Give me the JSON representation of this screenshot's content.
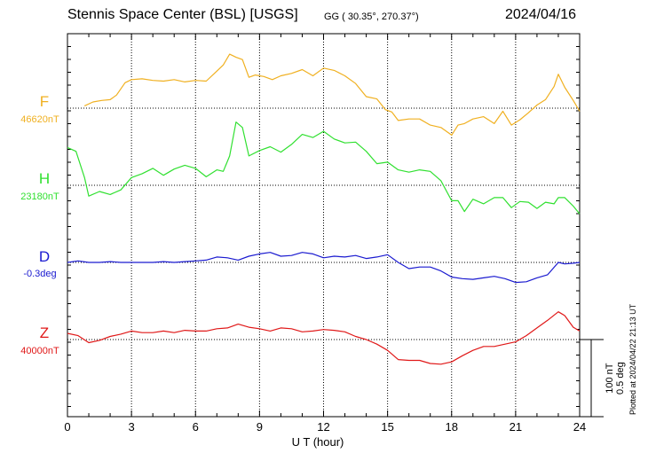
{
  "header": {
    "station": "Stennis Space Center (BSL)  [USGS]",
    "coords": "GG ( 30.35°, 270.37°)",
    "date": "2024/04/16"
  },
  "footer": {
    "plotted": "Plotted at 2024/04/22 21:13 UT"
  },
  "scale": {
    "nt": "100 nT",
    "deg": "0.5 deg"
  },
  "chart_data": {
    "type": "line",
    "xlabel": "U T (hour)",
    "xlim": [
      0,
      24
    ],
    "xticks": [
      "0",
      "3",
      "6",
      "9",
      "12",
      "15",
      "18",
      "21",
      "24"
    ],
    "grid": true,
    "series": [
      {
        "name": "F",
        "baseline": "46620nT",
        "color": "#f0b020",
        "x": [
          0.8,
          1.2,
          1.6,
          2.0,
          2.3,
          2.7,
          3.0,
          3.5,
          4.0,
          4.5,
          5.0,
          5.5,
          6.0,
          6.5,
          7.0,
          7.3,
          7.6,
          7.9,
          8.2,
          8.5,
          8.8,
          9.2,
          9.6,
          10.0,
          10.5,
          11.0,
          11.5,
          12.0,
          12.5,
          13.0,
          13.5,
          14.0,
          14.5,
          14.9,
          15.2,
          15.5,
          16.0,
          16.5,
          17.0,
          17.5,
          18.0,
          18.3,
          18.6,
          19.0,
          19.5,
          20.0,
          20.4,
          20.8,
          21.2,
          21.6,
          22.0,
          22.4,
          22.8,
          23.0,
          23.3,
          23.7,
          24.0
        ],
        "y": [
          3,
          8,
          10,
          11,
          17,
          33,
          37,
          38,
          36,
          35,
          37,
          34,
          36,
          35,
          48,
          56,
          70,
          66,
          63,
          40,
          43,
          41,
          37,
          42,
          45,
          50,
          42,
          52,
          49,
          42,
          32,
          15,
          12,
          -2,
          -5,
          -16,
          -14,
          -14,
          -22,
          -25,
          -35,
          -22,
          -20,
          -14,
          -11,
          -20,
          -4,
          -22,
          -15,
          -6,
          4,
          11,
          28,
          44,
          27,
          10,
          -4
        ]
      },
      {
        "name": "H",
        "baseline": "23180nT",
        "color": "#30e030",
        "x": [
          0.0,
          0.4,
          0.8,
          1.0,
          1.5,
          2.0,
          2.5,
          3.0,
          3.5,
          4.0,
          4.5,
          5.0,
          5.5,
          6.0,
          6.5,
          7.0,
          7.3,
          7.6,
          7.9,
          8.2,
          8.5,
          9.0,
          9.5,
          10.0,
          10.5,
          11.0,
          11.5,
          12.0,
          12.5,
          13.0,
          13.5,
          14.0,
          14.5,
          15.0,
          15.5,
          16.0,
          16.5,
          17.0,
          17.5,
          18.0,
          18.3,
          18.6,
          19.0,
          19.5,
          20.0,
          20.4,
          20.8,
          21.2,
          21.6,
          22.0,
          22.4,
          22.8,
          23.0,
          23.3,
          23.7,
          24.0
        ],
        "y": [
          49,
          44,
          10,
          -14,
          -8,
          -12,
          -6,
          10,
          15,
          22,
          13,
          21,
          26,
          22,
          11,
          20,
          18,
          38,
          82,
          75,
          38,
          45,
          50,
          43,
          53,
          66,
          62,
          70,
          60,
          55,
          56,
          44,
          28,
          30,
          20,
          17,
          20,
          18,
          6,
          -20,
          -20,
          -34,
          -18,
          -24,
          -16,
          -16,
          -29,
          -21,
          -22,
          -30,
          -22,
          -24,
          -16,
          -16,
          -27,
          -37
        ]
      },
      {
        "name": "D",
        "baseline": "-0.3deg",
        "color": "#1a1ad0",
        "x": [
          0.0,
          0.5,
          1.0,
          1.5,
          2.0,
          2.5,
          3.0,
          3.5,
          4.0,
          4.5,
          5.0,
          5.5,
          6.0,
          6.5,
          7.0,
          7.5,
          8.0,
          8.5,
          9.0,
          9.5,
          10.0,
          10.5,
          11.0,
          11.5,
          12.0,
          12.5,
          13.0,
          13.5,
          14.0,
          14.5,
          15.0,
          15.5,
          16.0,
          16.5,
          17.0,
          17.5,
          18.0,
          18.5,
          19.0,
          19.5,
          20.0,
          20.5,
          21.0,
          21.5,
          22.0,
          22.5,
          23.0,
          23.3,
          23.7,
          24.0
        ],
        "y": [
          0,
          2,
          0,
          0,
          1,
          0,
          0,
          0,
          0,
          1,
          0,
          1,
          2,
          3,
          7,
          6,
          3,
          8,
          11,
          13,
          8,
          9,
          13,
          11,
          6,
          8,
          7,
          9,
          5,
          7,
          10,
          0,
          -8,
          -6,
          -6,
          -11,
          -19,
          -21,
          -22,
          -20,
          -18,
          -21,
          -26,
          -25,
          -20,
          -16,
          0,
          -2,
          -1,
          0
        ]
      },
      {
        "name": "Z",
        "baseline": "40000nT",
        "color": "#e01818",
        "x": [
          0.0,
          0.5,
          1.0,
          1.5,
          2.0,
          2.5,
          3.0,
          3.5,
          4.0,
          4.5,
          5.0,
          5.5,
          6.0,
          6.5,
          7.0,
          7.5,
          8.0,
          8.5,
          9.0,
          9.5,
          10.0,
          10.5,
          11.0,
          11.5,
          12.0,
          12.5,
          13.0,
          13.5,
          14.0,
          14.5,
          15.0,
          15.5,
          16.0,
          16.5,
          17.0,
          17.5,
          18.0,
          18.5,
          19.0,
          19.5,
          20.0,
          20.5,
          21.0,
          21.5,
          22.0,
          22.5,
          23.0,
          23.3,
          23.7,
          24.0
        ],
        "y": [
          8,
          5,
          -4,
          -1,
          4,
          7,
          11,
          9,
          9,
          11,
          9,
          12,
          11,
          11,
          14,
          15,
          20,
          16,
          14,
          11,
          15,
          14,
          10,
          11,
          13,
          12,
          10,
          4,
          0,
          -6,
          -14,
          -26,
          -27,
          -27,
          -31,
          -32,
          -29,
          -21,
          -14,
          -9,
          -9,
          -6,
          -3,
          5,
          15,
          25,
          36,
          31,
          16,
          11
        ]
      }
    ]
  }
}
